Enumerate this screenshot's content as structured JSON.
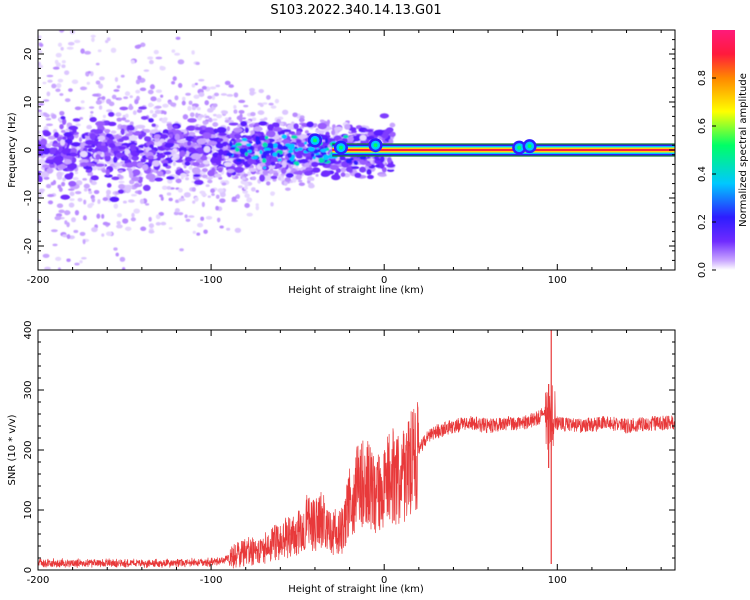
{
  "title": "S103.2022.340.14.13.G01",
  "colors": {
    "snr_line": "#e8393a",
    "tone_line": "#1a7a3a",
    "axis": "#000000"
  },
  "chart_data": [
    {
      "type": "heatmap",
      "name": "spectrogram",
      "xlabel": "Height of straight line (km)",
      "ylabel": "Frequency (Hz)",
      "xlim": [
        -200,
        168
      ],
      "ylim": [
        -25,
        25
      ],
      "x_ticks": [
        -200,
        -100,
        0,
        100
      ],
      "y_ticks": [
        -20,
        -10,
        0,
        10,
        20
      ],
      "colorbar": {
        "label": "Normalized spectral amplitude",
        "range": [
          0,
          1
        ],
        "ticks": [
          0.0,
          0.2,
          0.4,
          0.6,
          0.8
        ],
        "tick_labels": [
          "0.0",
          "0.2",
          "0.4",
          "0.6",
          "0.8"
        ],
        "colormap": [
          "#ffffff",
          "#c9a6ff",
          "#6f2bff",
          "#2d1dff",
          "#00c8ff",
          "#00ff66",
          "#ffff00",
          "#ff8800",
          "#ff1a3c",
          "#ff1a7a"
        ]
      },
      "carrier": {
        "frequency_hz": 0,
        "starts_km": -30,
        "ends_km": 168,
        "amplitude": 0.9
      },
      "noise_region_km": [
        -200,
        -20
      ],
      "bursts": [
        {
          "x": -40,
          "y": 2,
          "amplitude": 0.45
        },
        {
          "x": -25,
          "y": 0.5,
          "amplitude": 0.6
        },
        {
          "x": -5,
          "y": 1,
          "amplitude": 0.55
        },
        {
          "x": 78,
          "y": 0.5,
          "amplitude": 0.6
        },
        {
          "x": 84,
          "y": 0.8,
          "amplitude": 0.6
        }
      ]
    },
    {
      "type": "line",
      "name": "snr",
      "xlabel": "Height of straight line (km)",
      "ylabel": "SNR (10 * v/v)",
      "xlim": [
        -200,
        168
      ],
      "ylim": [
        0,
        400
      ],
      "x_ticks": [
        -200,
        -100,
        0,
        100
      ],
      "y_ticks": [
        0,
        100,
        200,
        300,
        400
      ],
      "series": [
        {
          "name": "SNR",
          "x": [
            -200,
            -180,
            -160,
            -140,
            -120,
            -100,
            -95,
            -90,
            -85,
            -80,
            -70,
            -60,
            -50,
            -45,
            -40,
            -35,
            -30,
            -25,
            -20,
            -15,
            -10,
            -5,
            0,
            5,
            10,
            15,
            20,
            25,
            30,
            40,
            50,
            60,
            70,
            80,
            85,
            90,
            93,
            95,
            96,
            97,
            98,
            100,
            110,
            120,
            130,
            140,
            150,
            160,
            168
          ],
          "y": [
            12,
            11,
            12,
            11,
            12,
            13,
            15,
            20,
            25,
            30,
            35,
            50,
            60,
            80,
            75,
            90,
            65,
            60,
            110,
            140,
            150,
            120,
            140,
            160,
            150,
            175,
            200,
            220,
            230,
            240,
            245,
            240,
            245,
            245,
            250,
            255,
            265,
            250,
            240,
            255,
            245,
            245,
            240,
            242,
            245,
            240,
            243,
            245,
            245
          ],
          "spikes": [
            {
              "x": 96.5,
              "ymax": 400,
              "ymin": 10
            },
            {
              "x": 95,
              "ymax": 310,
              "ymin": 170
            }
          ]
        }
      ]
    }
  ]
}
